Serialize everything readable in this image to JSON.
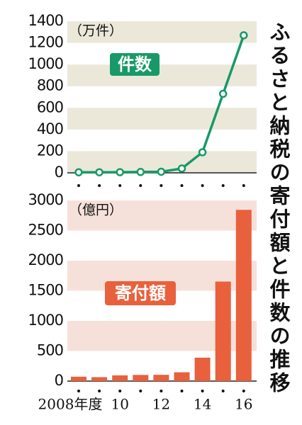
{
  "title": "ふるさと納税の寄付額と件数の推移",
  "chart_data": [
    {
      "type": "line",
      "unit": "（万件）",
      "label": "件数",
      "color": "#179a67",
      "categories": [
        "2008年度",
        null,
        "10",
        null,
        "12",
        null,
        "14",
        null,
        "16"
      ],
      "values": [
        5,
        5,
        6,
        8,
        10,
        40,
        190,
        730,
        1270
      ],
      "ylim": [
        0,
        1400
      ],
      "yticks": [
        0,
        200,
        400,
        600,
        800,
        1000,
        1200,
        1400
      ],
      "stripe_color": "#ebe8da"
    },
    {
      "type": "bar",
      "unit": "（億円）",
      "label": "寄付額",
      "color": "#e9603d",
      "categories": [
        "2008年度",
        null,
        "10",
        null,
        "12",
        null,
        "14",
        null,
        "16"
      ],
      "values": [
        73,
        65,
        95,
        102,
        104,
        146,
        389,
        1653,
        2844
      ],
      "ylim": [
        0,
        3000
      ],
      "yticks": [
        0,
        500,
        1000,
        1500,
        2000,
        2500,
        3000
      ],
      "stripe_color": "#f6e1da"
    }
  ]
}
